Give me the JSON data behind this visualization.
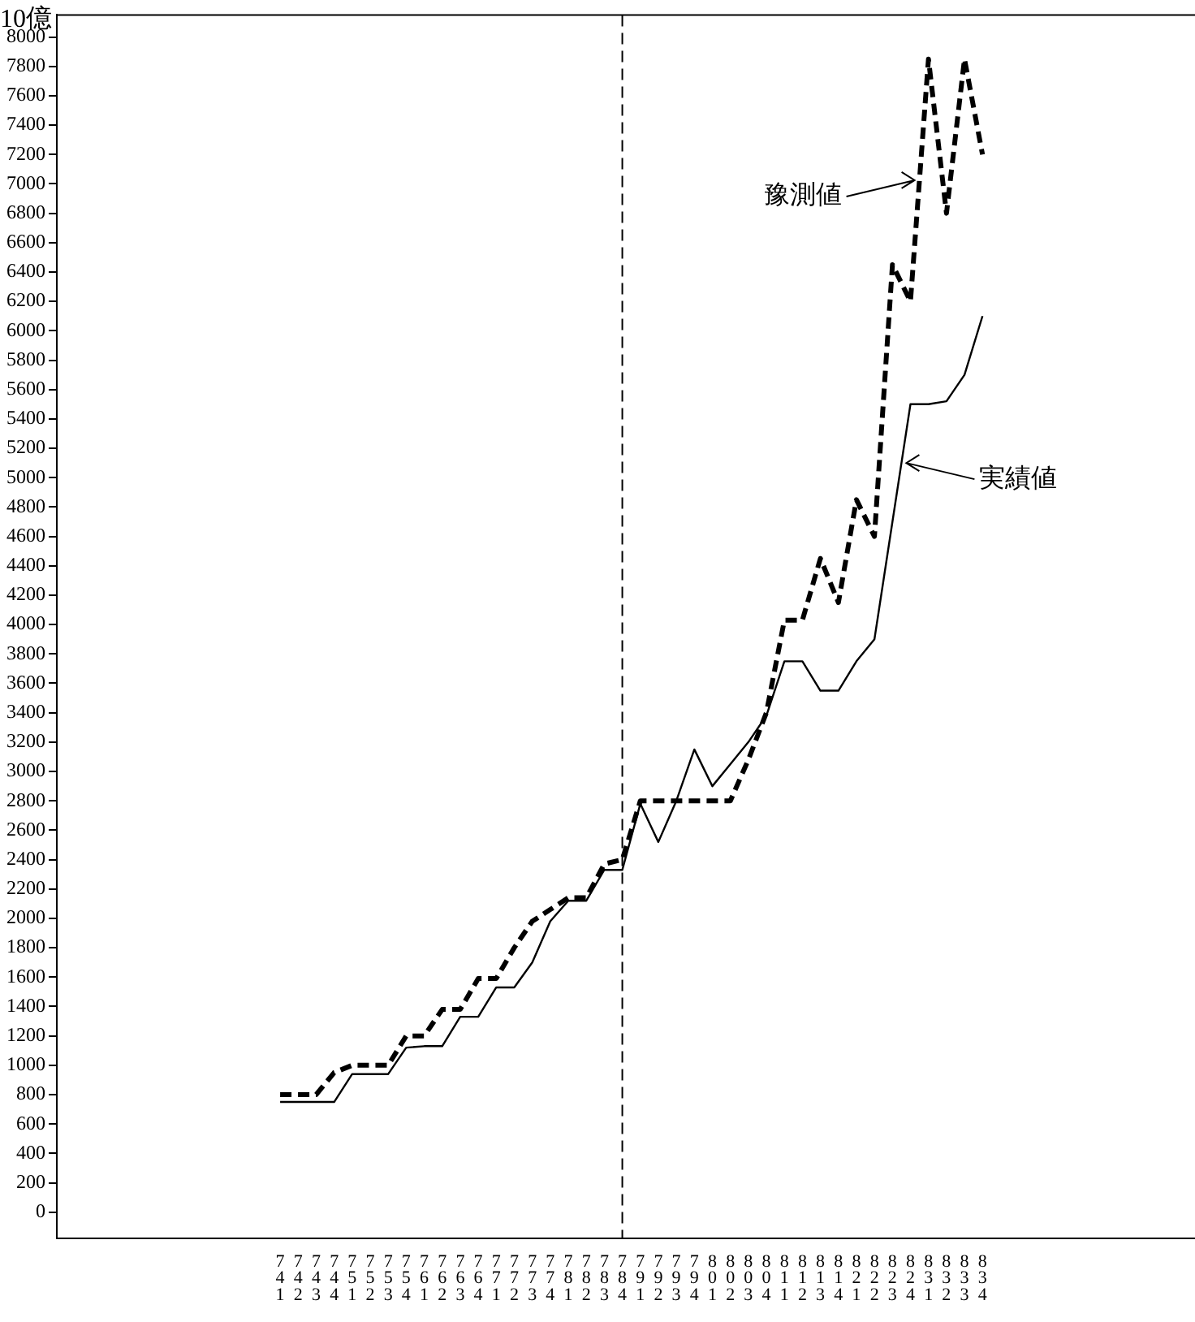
{
  "chart_data": {
    "type": "line",
    "ylabel": "10億",
    "categories": [
      "741",
      "742",
      "743",
      "744",
      "751",
      "752",
      "753",
      "754",
      "761",
      "762",
      "763",
      "764",
      "771",
      "772",
      "773",
      "774",
      "781",
      "782",
      "783",
      "784",
      "791",
      "792",
      "793",
      "794",
      "801",
      "802",
      "803",
      "804",
      "811",
      "812",
      "813",
      "814",
      "821",
      "822",
      "823",
      "824",
      "831",
      "832",
      "833",
      "834"
    ],
    "series": [
      {
        "name": "実績値",
        "color": "#000000",
        "line_style": "solid",
        "values": [
          750,
          750,
          750,
          750,
          940,
          940,
          940,
          1120,
          1130,
          1130,
          1330,
          1330,
          1530,
          1530,
          1700,
          1980,
          2120,
          2120,
          2330,
          2330,
          2780,
          2520,
          2800,
          3150,
          2900,
          3050,
          3200,
          3380,
          3750,
          3750,
          3550,
          3550,
          3750,
          3900,
          4700,
          5500,
          5500,
          5520,
          5700,
          6100
        ]
      },
      {
        "name": "豫測値",
        "color": "#000000",
        "line_style": "dashed",
        "values": [
          800,
          800,
          800,
          950,
          1000,
          1000,
          1000,
          1200,
          1200,
          1380,
          1380,
          1590,
          1590,
          1800,
          1980,
          2060,
          2140,
          2140,
          2370,
          2400,
          2800,
          2800,
          2800,
          2800,
          2800,
          2800,
          3080,
          3400,
          4030,
          4030,
          4450,
          4150,
          4850,
          4600,
          6450,
          6200,
          7850,
          6800,
          7850,
          7200
        ]
      }
    ],
    "ylim": [
      -180,
      8150
    ],
    "yticks": [
      0,
      200,
      400,
      600,
      800,
      1000,
      1200,
      1400,
      1600,
      1800,
      2000,
      2200,
      2400,
      2600,
      2800,
      3000,
      3200,
      3400,
      3600,
      3800,
      4000,
      4200,
      4400,
      4600,
      4800,
      5000,
      5200,
      5400,
      5600,
      5800,
      6000,
      6200,
      6400,
      6600,
      6800,
      7000,
      7200,
      7400,
      7600,
      7800,
      8000
    ],
    "ref_lines": [
      {
        "axis": "x",
        "value": "784",
        "line_style": "dashed",
        "color": "#000000"
      }
    ],
    "grid": false,
    "legend": "right",
    "marker": "none"
  }
}
